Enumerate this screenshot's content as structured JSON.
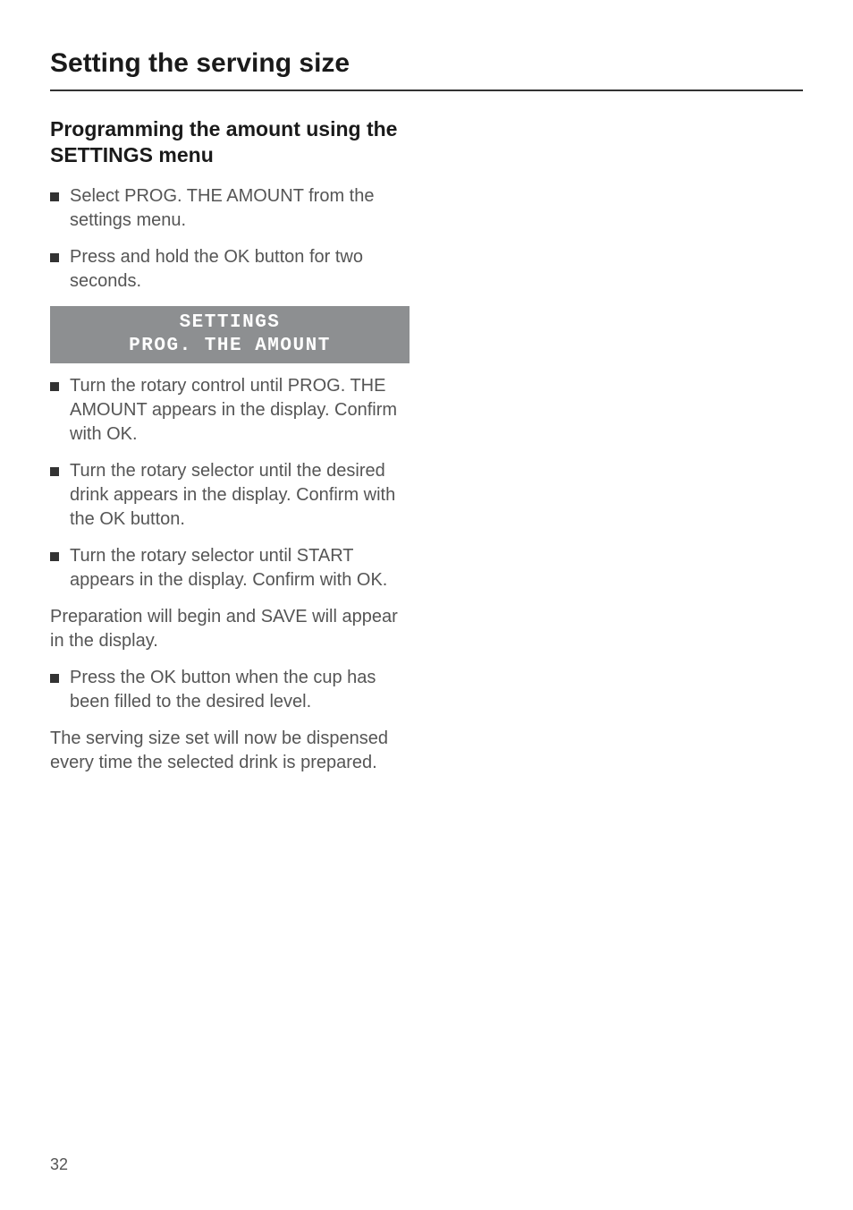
{
  "page": {
    "title": "Setting the serving size",
    "number": "32"
  },
  "section": {
    "heading": "Programming the amount using the SETTINGS menu"
  },
  "bullets": {
    "b1": "Select PROG. THE AMOUNT from the settings menu.",
    "b2": "Press and hold the OK button for two seconds.",
    "b3": "Turn the rotary control until PROG. THE AMOUNT appears in the display. Confirm with OK.",
    "b4": "Turn the rotary selector until the desired drink appears in the display. Confirm with the OK button.",
    "b5": "Turn the rotary selector until START appears in the display. Confirm with OK.",
    "b6": "Press the OK button when the cup has been filled to the desired level."
  },
  "display": {
    "line1": "SETTINGS",
    "line2": "PROG. THE AMOUNT"
  },
  "paragraphs": {
    "p1": "Preparation will begin and SAVE will appear in the display.",
    "p2": "The serving size set will now be dispensed every time the selected drink is prepared."
  },
  "styles": {
    "page_bg": "#ffffff",
    "text_color": "#555555",
    "heading_color": "#1a1a1a",
    "display_bg": "#8d8f91",
    "display_text": "#ffffff",
    "rule_color": "#333333"
  }
}
